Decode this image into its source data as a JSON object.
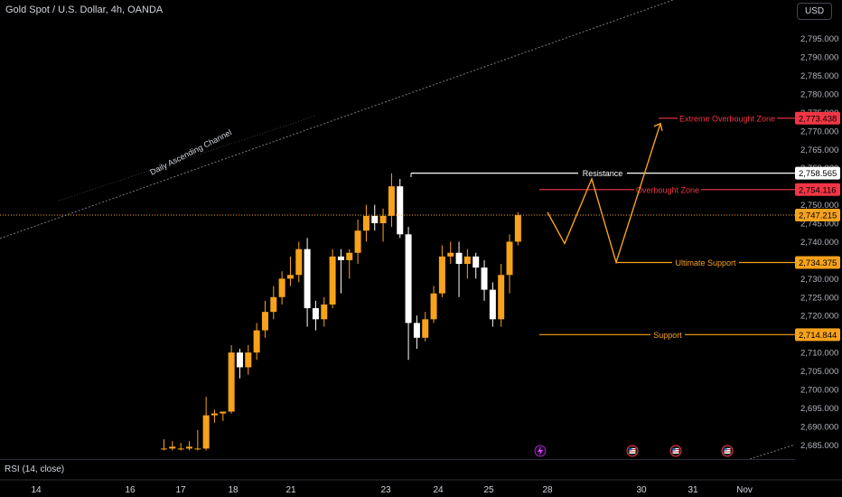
{
  "header": {
    "symbol": "Gold Spot / U.S. Dollar, 4h, OANDA",
    "currency": "USD"
  },
  "rsi": {
    "label": "RSI (14, close)"
  },
  "colors": {
    "up": "#f7a21b",
    "down": "#ffffff",
    "background": "#000000",
    "resistance": "#ffffff",
    "overbought": "#f23645",
    "support": "#f7a21b",
    "projection": "#f7a21b",
    "channel": "#787b86",
    "price_line": "#f7a21b"
  },
  "chart_data": {
    "type": "candlestick",
    "ylim": [
      2683,
      2800
    ],
    "y_ticks": [
      "2,685.000",
      "2,690.000",
      "2,695.000",
      "2,700.000",
      "2,705.000",
      "2,710.000",
      "2,715.000",
      "2,720.000",
      "2,725.000",
      "2,730.000",
      "2,735.000",
      "2,740.000",
      "2,745.000",
      "2,750.000",
      "2,755.000",
      "2,760.000",
      "2,765.000",
      "2,770.000",
      "2,775.000",
      "2,780.000",
      "2,785.000",
      "2,790.000",
      "2,795.000"
    ],
    "x_ticks": [
      "14",
      "16",
      "17",
      "18",
      "21",
      "23",
      "24",
      "25",
      "28",
      "30",
      "31",
      "Nov"
    ],
    "candles": [
      {
        "o": 2684.0,
        "h": 2686.5,
        "l": 2683.5,
        "c": 2684.0
      },
      {
        "o": 2684.0,
        "h": 2686.0,
        "l": 2683.5,
        "c": 2684.5
      },
      {
        "o": 2684.0,
        "h": 2685.5,
        "l": 2683.5,
        "c": 2684.0
      },
      {
        "o": 2684.0,
        "h": 2686.0,
        "l": 2683.5,
        "c": 2684.5
      },
      {
        "o": 2684.0,
        "h": 2689.0,
        "l": 2683.5,
        "c": 2684.0
      },
      {
        "o": 2684.0,
        "h": 2698.0,
        "l": 2683.5,
        "c": 2693.0
      },
      {
        "o": 2693.0,
        "h": 2694.5,
        "l": 2691.0,
        "c": 2693.5
      },
      {
        "o": 2693.5,
        "h": 2694.0,
        "l": 2691.5,
        "c": 2694.0
      },
      {
        "o": 2694.0,
        "h": 2712.0,
        "l": 2693.5,
        "c": 2710.0
      },
      {
        "o": 2710.0,
        "h": 2711.0,
        "l": 2703.0,
        "c": 2706.0
      },
      {
        "o": 2706.0,
        "h": 2712.0,
        "l": 2704.0,
        "c": 2710.0
      },
      {
        "o": 2710.0,
        "h": 2718.0,
        "l": 2708.0,
        "c": 2716.0
      },
      {
        "o": 2716.0,
        "h": 2724.0,
        "l": 2714.0,
        "c": 2721.0
      },
      {
        "o": 2721.0,
        "h": 2728.0,
        "l": 2719.0,
        "c": 2725.0
      },
      {
        "o": 2725.0,
        "h": 2732.0,
        "l": 2723.0,
        "c": 2730.0
      },
      {
        "o": 2730.0,
        "h": 2736.0,
        "l": 2728.0,
        "c": 2731.0
      },
      {
        "o": 2731.0,
        "h": 2740.0,
        "l": 2729.0,
        "c": 2738.0
      },
      {
        "o": 2738.0,
        "h": 2741.0,
        "l": 2717.0,
        "c": 2722.0
      },
      {
        "o": 2722.0,
        "h": 2724.0,
        "l": 2716.0,
        "c": 2719.0
      },
      {
        "o": 2719.0,
        "h": 2725.0,
        "l": 2717.0,
        "c": 2723.0
      },
      {
        "o": 2723.0,
        "h": 2738.0,
        "l": 2722.0,
        "c": 2736.0
      },
      {
        "o": 2736.0,
        "h": 2738.0,
        "l": 2726.0,
        "c": 2735.0
      },
      {
        "o": 2735.0,
        "h": 2738.0,
        "l": 2730.0,
        "c": 2737.0
      },
      {
        "o": 2737.0,
        "h": 2746.0,
        "l": 2734.0,
        "c": 2743.0
      },
      {
        "o": 2743.0,
        "h": 2750.0,
        "l": 2740.0,
        "c": 2747.0
      },
      {
        "o": 2747.0,
        "h": 2750.0,
        "l": 2743.0,
        "c": 2745.0
      },
      {
        "o": 2745.0,
        "h": 2749.0,
        "l": 2740.0,
        "c": 2747.0
      },
      {
        "o": 2747.0,
        "h": 2758.5,
        "l": 2744.0,
        "c": 2755.0
      },
      {
        "o": 2755.0,
        "h": 2757.0,
        "l": 2741.0,
        "c": 2742.0
      },
      {
        "o": 2742.0,
        "h": 2744.0,
        "l": 2708.0,
        "c": 2718.0
      },
      {
        "o": 2718.0,
        "h": 2720.0,
        "l": 2711.0,
        "c": 2714.0
      },
      {
        "o": 2714.0,
        "h": 2721.0,
        "l": 2713.0,
        "c": 2719.0
      },
      {
        "o": 2719.0,
        "h": 2728.0,
        "l": 2718.0,
        "c": 2726.0
      },
      {
        "o": 2726.0,
        "h": 2739.0,
        "l": 2725.0,
        "c": 2736.0
      },
      {
        "o": 2736.0,
        "h": 2740.0,
        "l": 2734.0,
        "c": 2737.0
      },
      {
        "o": 2737.0,
        "h": 2740.0,
        "l": 2725.0,
        "c": 2734.0
      },
      {
        "o": 2734.0,
        "h": 2738.0,
        "l": 2730.0,
        "c": 2736.0
      },
      {
        "o": 2736.0,
        "h": 2737.0,
        "l": 2730.0,
        "c": 2733.0
      },
      {
        "o": 2733.0,
        "h": 2735.0,
        "l": 2724.0,
        "c": 2727.0
      },
      {
        "o": 2727.0,
        "h": 2729.0,
        "l": 2717.0,
        "c": 2719.0
      },
      {
        "o": 2719.0,
        "h": 2734.0,
        "l": 2717.0,
        "c": 2731.0
      },
      {
        "o": 2731.0,
        "h": 2742.0,
        "l": 2726.0,
        "c": 2740.0
      },
      {
        "o": 2740.0,
        "h": 2748.0,
        "l": 2739.0,
        "c": 2747.2
      }
    ],
    "levels": [
      {
        "name": "Resistance",
        "value": 2758.565,
        "label": "2,758.565",
        "color": "#ffffff"
      },
      {
        "name": "Overbought Zone",
        "value": 2754.116,
        "label": "2,754.116",
        "color": "#f23645"
      },
      {
        "name": "Extreme Overbought Zone",
        "value": 2773.438,
        "label": "2,773.438",
        "color": "#f23645"
      },
      {
        "name": "Ultimate Support",
        "value": 2734.375,
        "label": "2,734.375",
        "color": "#f7a21b"
      },
      {
        "name": "Support",
        "value": 2714.844,
        "label": "2,714.844",
        "color": "#f7a21b"
      }
    ],
    "current_price": {
      "value": 2747.215,
      "label": "2,747.215"
    },
    "projection": [
      2748,
      2739.5,
      2757,
      2734.4,
      2772
    ],
    "annotations": [
      "Daily Ascending Channel"
    ]
  }
}
